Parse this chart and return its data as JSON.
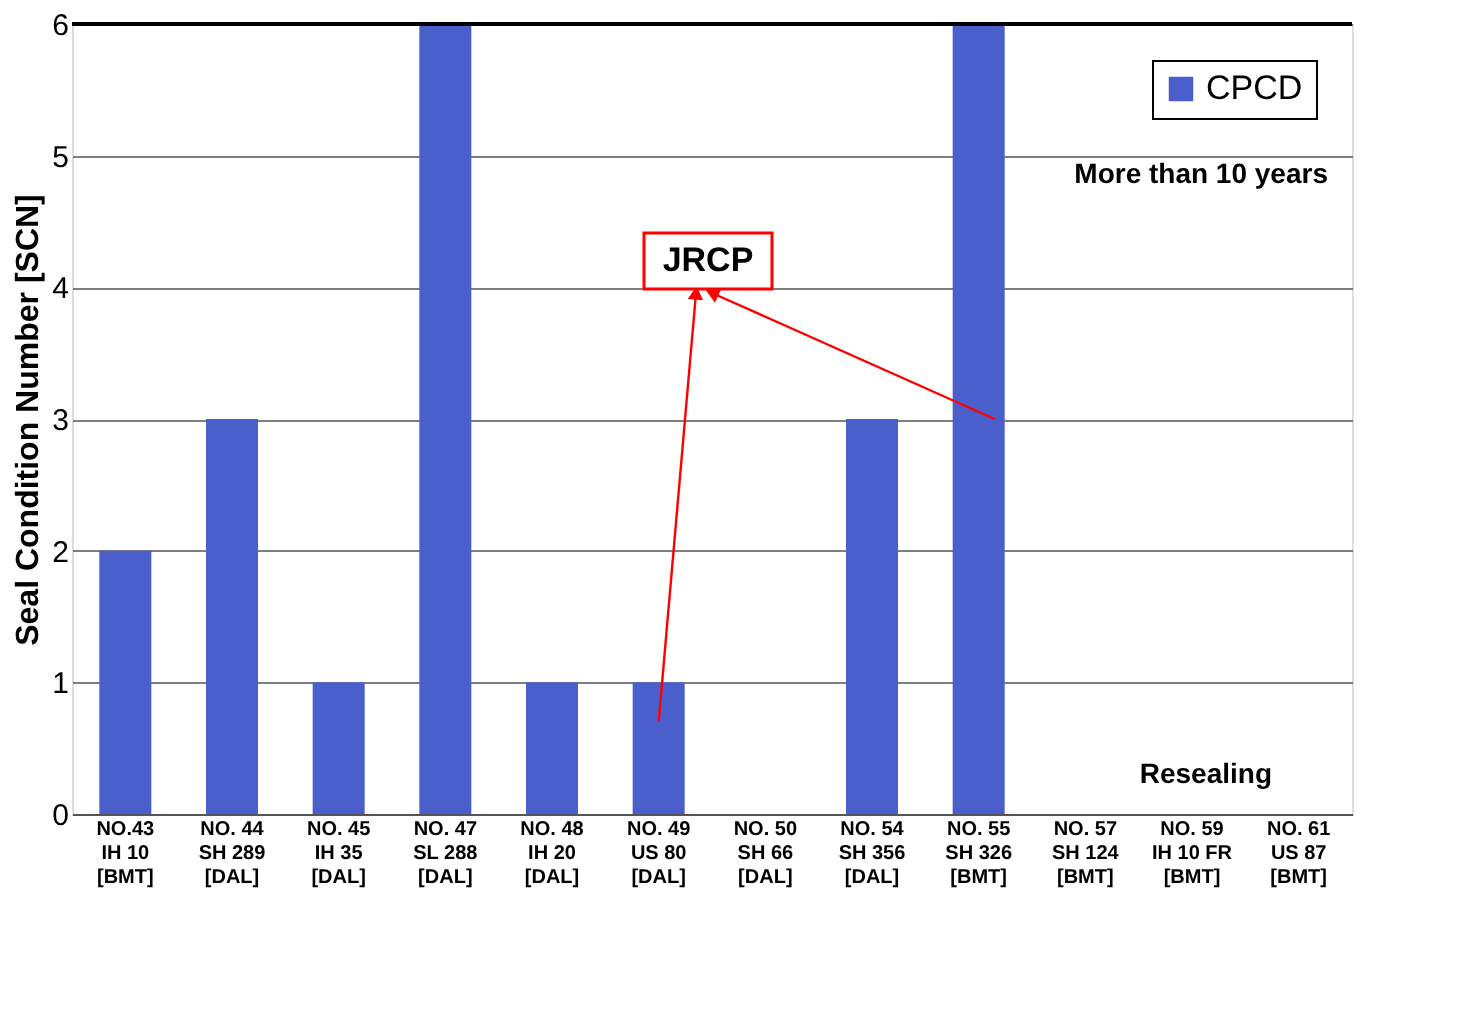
{
  "chart_data": {
    "type": "bar",
    "ylabel": "Seal Condition Number [SCN]",
    "categories": [
      "NO.43\nIH 10\n[BMT]",
      "NO. 44\nSH 289\n[DAL]",
      "NO. 45\nIH 35\n[DAL]",
      "NO. 47\nSL 288\n[DAL]",
      "NO. 48\nIH 20\n[DAL]",
      "NO. 49\nUS 80\n[DAL]",
      "NO. 50\nSH 66\n[DAL]",
      "NO. 54\nSH 356\n[DAL]",
      "NO. 55\nSH 326\n[BMT]",
      "NO. 57\nSH 124\n[BMT]",
      "NO. 59\nIH 10 FR\n[BMT]",
      "NO. 61\nUS 87\n[BMT]"
    ],
    "series": [
      {
        "name": "CPCD",
        "color": "#4a5fcc",
        "values": [
          2,
          3,
          1,
          6,
          1,
          1,
          0,
          3,
          6,
          0,
          0,
          0
        ]
      }
    ],
    "ylim": [
      0,
      6
    ],
    "yticks": [
      0,
      1,
      2,
      3,
      4,
      5,
      6
    ],
    "grid": "y",
    "legend": "top right",
    "annotations": [
      "JRCP",
      "More than 10 years",
      "Resealing"
    ]
  }
}
